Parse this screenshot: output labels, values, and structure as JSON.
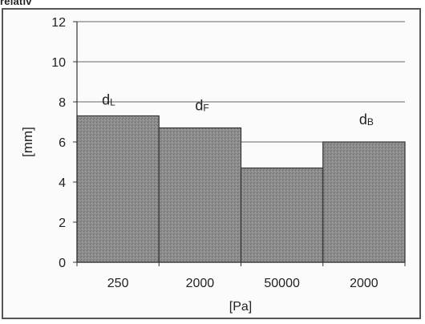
{
  "caption": "relativ",
  "chart_data": {
    "type": "bar",
    "categories": [
      "250",
      "2000",
      "50000",
      "2000"
    ],
    "values": [
      7.3,
      6.7,
      4.7,
      6.0
    ],
    "bar_labels": [
      {
        "main": "d",
        "sub": "L"
      },
      {
        "main": "d",
        "sub": "F"
      },
      {
        "main": "",
        "sub": ""
      },
      {
        "main": "d",
        "sub": "B"
      }
    ],
    "xlabel": "[Pa]",
    "ylabel": "[mm]",
    "ylim": [
      0,
      12
    ],
    "yticks": [
      "0",
      "2",
      "4",
      "6",
      "8",
      "10",
      "12"
    ],
    "grid": true,
    "bar_color": "#8a8a8a"
  }
}
